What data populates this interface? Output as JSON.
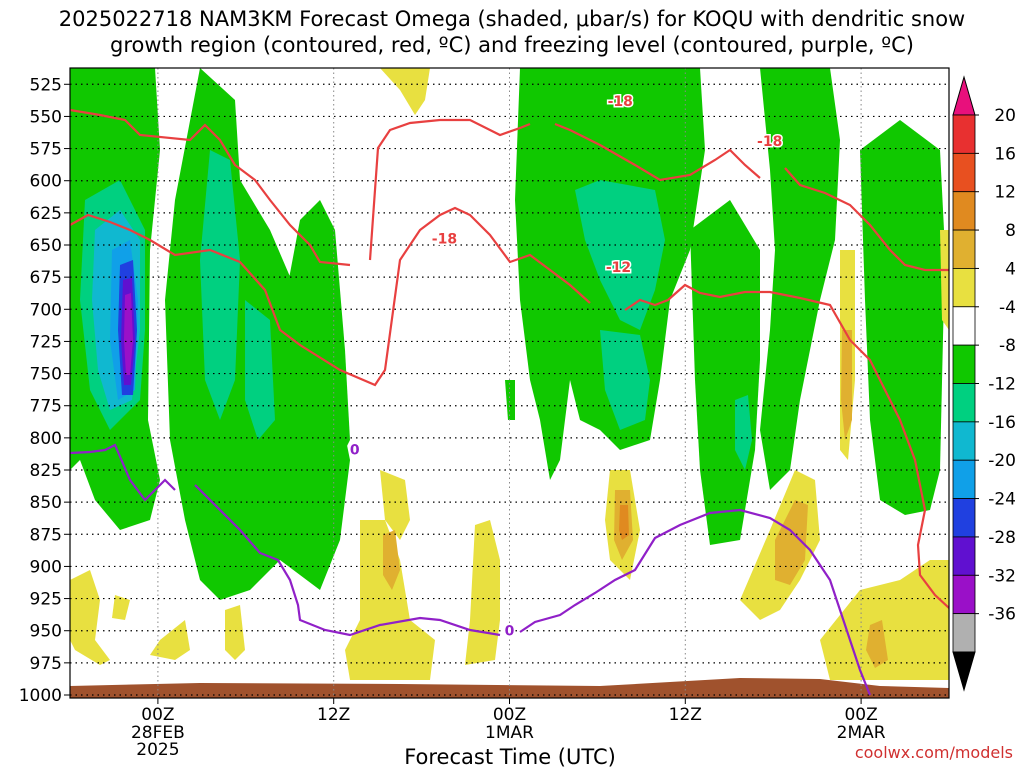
{
  "chart_data": {
    "type": "heatmap",
    "title_line1": "2025022718 NAM3KM Forecast Omega (shaded, μbar/s) for KOQU with dendritic snow",
    "title_line2": "growth region (contoured, red, ºC) and freezing level (contoured, purple, ºC)",
    "xlabel": "Forecast Time (UTC)",
    "ylabel": "",
    "y_scale": "pressure (mb), inverted",
    "ylim": [
      1000,
      510
    ],
    "y_ticks": [
      525,
      550,
      575,
      600,
      625,
      650,
      675,
      700,
      725,
      750,
      775,
      800,
      825,
      850,
      875,
      900,
      925,
      950,
      975,
      1000
    ],
    "x_range_hours": [
      -5,
      45
    ],
    "x_ticks": [
      {
        "hour": 0,
        "label": "00Z",
        "sub1": "28FEB",
        "sub2": "2025"
      },
      {
        "hour": 10,
        "label": "12Z",
        "sub1": "",
        "sub2": ""
      },
      {
        "hour": 20,
        "label": "00Z",
        "sub1": "1MAR",
        "sub2": ""
      },
      {
        "hour": 30,
        "label": "12Z",
        "sub1": "",
        "sub2": ""
      },
      {
        "hour": 40,
        "label": "00Z",
        "sub1": "2MAR",
        "sub2": ""
      }
    ],
    "grid": true,
    "colorbar": {
      "labels": [
        "20",
        "16",
        "12",
        "8",
        "4",
        "-4",
        "-8",
        "-12",
        "-16",
        "-20",
        "-24",
        "-28",
        "-32",
        "-36"
      ],
      "levels": [
        24,
        20,
        16,
        12,
        8,
        4,
        -4,
        -8,
        -12,
        -16,
        -20,
        -24,
        -28,
        -32,
        -36
      ],
      "colors": [
        "#e8107c",
        "#e83030",
        "#e85020",
        "#e08a20",
        "#e0b030",
        "#e8e040",
        "#ffffff",
        "#10c800",
        "#00d080",
        "#10b8d0",
        "#10a0e8",
        "#2040e0",
        "#6010d0",
        "#9a10c8",
        "#b0b0b0",
        "#000000"
      ]
    },
    "contours": [
      {
        "label": "-18",
        "color": "#e84040",
        "label_positions": [
          [
            16.3,
            645
          ],
          [
            26.3,
            538
          ],
          [
            34.8,
            569
          ]
        ]
      },
      {
        "label": "-12",
        "color": "#e84040",
        "label_positions": [
          [
            26.2,
            667
          ]
        ]
      },
      {
        "label": "0",
        "color": "#9020c8",
        "label_positions": [
          [
            11.2,
            809
          ],
          [
            20.0,
            950
          ]
        ]
      }
    ],
    "omega_shading_mb_x": "qualitative omega fields approximated from image"
  },
  "credit": "coolwx.com/models"
}
